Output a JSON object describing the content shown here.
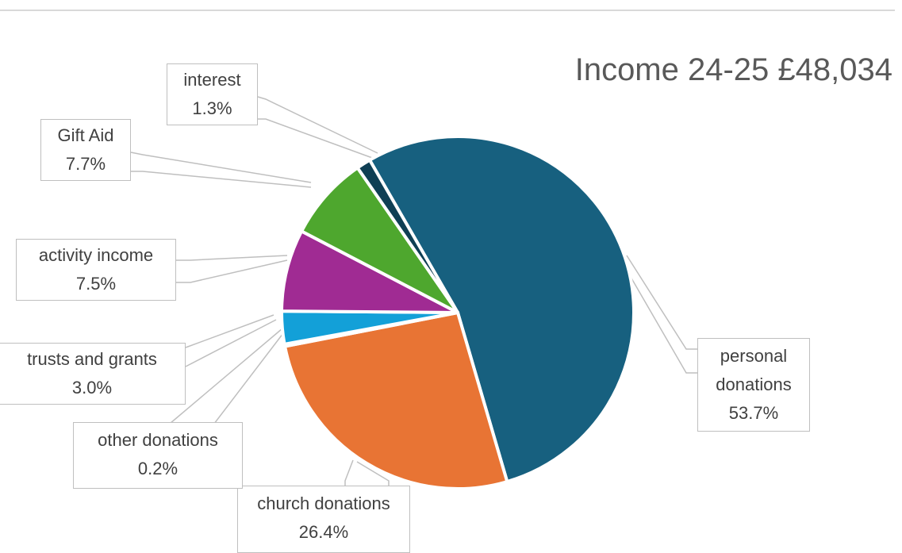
{
  "chart_data": {
    "type": "pie",
    "title": "Income 24-25 £48,034",
    "slices": [
      {
        "label": "personal donations",
        "value": 53.7,
        "display": "53.7%",
        "color": "#17607f"
      },
      {
        "label": "church donations",
        "value": 26.4,
        "display": "26.4%",
        "color": "#e87434"
      },
      {
        "label": "other donations",
        "value": 0.2,
        "display": "0.2%",
        "color": "#5aa7d6"
      },
      {
        "label": "trusts and grants",
        "value": 3.0,
        "display": "3.0%",
        "color": "#13a0d8"
      },
      {
        "label": "activity income",
        "value": 7.5,
        "display": "7.5%",
        "color": "#a02b93"
      },
      {
        "label": "Gift Aid",
        "value": 7.7,
        "display": "7.7%",
        "color": "#4ea72e"
      },
      {
        "label": "interest",
        "value": 1.3,
        "display": "1.3%",
        "color": "#0f3f54"
      }
    ],
    "label_style": "callouts with leader lines",
    "legend": "none"
  }
}
